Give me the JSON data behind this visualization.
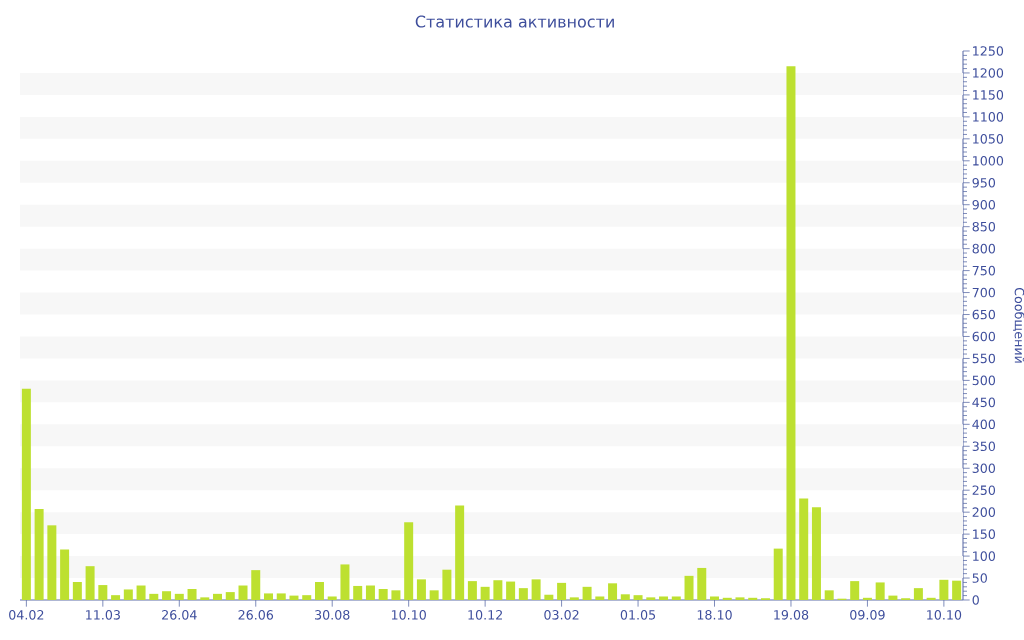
{
  "chart_data": {
    "type": "bar",
    "title": "Статистика активности",
    "ylabel": "Сообщений",
    "categories": [
      "04.02",
      null,
      null,
      null,
      null,
      null,
      "11.03",
      null,
      null,
      null,
      null,
      null,
      "26.04",
      null,
      null,
      null,
      null,
      null,
      "26.06",
      null,
      null,
      null,
      null,
      null,
      "30.08",
      null,
      null,
      null,
      null,
      null,
      "10.10",
      null,
      null,
      null,
      null,
      null,
      "10.12",
      null,
      null,
      null,
      null,
      null,
      "03.02",
      null,
      null,
      null,
      null,
      null,
      "01.05",
      null,
      null,
      null,
      null,
      null,
      "18.10",
      null,
      null,
      null,
      null,
      null,
      "19.08",
      null,
      null,
      null,
      null,
      null,
      "09.09",
      null,
      null,
      null,
      null,
      null,
      "10.10",
      null
    ],
    "values": [
      481,
      207,
      170,
      115,
      41,
      77,
      34,
      11,
      24,
      33,
      14,
      20,
      14,
      25,
      6,
      14,
      18,
      33,
      68,
      15,
      15,
      10,
      11,
      41,
      8,
      81,
      32,
      33,
      25,
      22,
      177,
      47,
      22,
      69,
      215,
      43,
      30,
      45,
      42,
      27,
      47,
      12,
      39,
      6,
      30,
      8,
      38,
      13,
      11,
      6,
      8,
      8,
      55,
      73,
      8,
      5,
      6,
      5,
      4,
      117,
      1215,
      231,
      211,
      22,
      3,
      43,
      5,
      40,
      10,
      4,
      27,
      5,
      46,
      44
    ],
    "color": "#bde030",
    "ylim": [
      0,
      1250
    ],
    "yticks": [
      0,
      50,
      100,
      150,
      200,
      250,
      300,
      350,
      400,
      450,
      500,
      550,
      600,
      650,
      700,
      750,
      800,
      850,
      900,
      950,
      1000,
      1050,
      1100,
      1150,
      1200,
      1250
    ],
    "bands": [
      {
        "axis": "y",
        "from": 50,
        "to": 100,
        "color": "#f7f7f7"
      },
      {
        "axis": "y",
        "from": 150,
        "to": 200,
        "color": "#f7f7f7"
      },
      {
        "axis": "y",
        "from": 250,
        "to": 300,
        "color": "#f7f7f7"
      },
      {
        "axis": "y",
        "from": 350,
        "to": 400,
        "color": "#f7f7f7"
      },
      {
        "axis": "y",
        "from": 450,
        "to": 500,
        "color": "#f7f7f7"
      },
      {
        "axis": "y",
        "from": 550,
        "to": 600,
        "color": "#f7f7f7"
      },
      {
        "axis": "y",
        "from": 650,
        "to": 700,
        "color": "#f7f7f7"
      },
      {
        "axis": "y",
        "from": 750,
        "to": 800,
        "color": "#f7f7f7"
      },
      {
        "axis": "y",
        "from": 850,
        "to": 900,
        "color": "#f7f7f7"
      },
      {
        "axis": "y",
        "from": 950,
        "to": 1000,
        "color": "#f7f7f7"
      },
      {
        "axis": "y",
        "from": 1050,
        "to": 1100,
        "color": "#f7f7f7"
      },
      {
        "axis": "y",
        "from": 1150,
        "to": 1200,
        "color": "#f7f7f7"
      }
    ]
  }
}
